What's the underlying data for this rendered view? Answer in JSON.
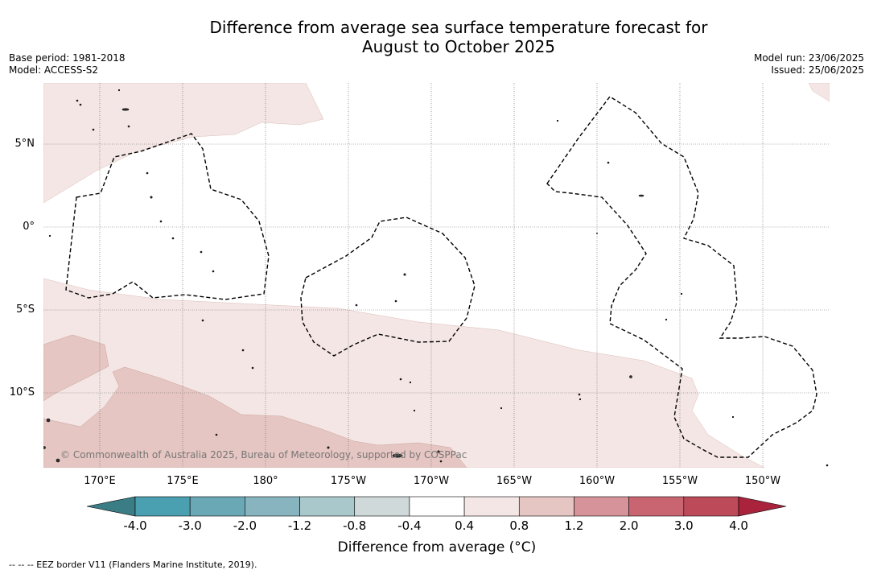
{
  "title": {
    "line1": "Difference from average sea surface temperature forecast for",
    "line2": "August to October 2025"
  },
  "meta_left": {
    "base_period": "Base period: 1981-2018",
    "model": "Model: ACCESS-S2"
  },
  "meta_right": {
    "model_run": "Model run: 23/06/2025",
    "issued": "Issued: 25/06/2025"
  },
  "map": {
    "lat_labels": [
      "5°N",
      "0°",
      "5°S",
      "10°S"
    ],
    "lon_labels": [
      "170°E",
      "175°E",
      "180°",
      "175°W",
      "170°W",
      "165°W",
      "160°W",
      "155°W",
      "150°W"
    ],
    "copyright": "© Commonwealth of Australia 2025, Bureau of Meteorology, supported by COSPPac",
    "colors": {
      "anomaly_0_4_to_0_8": "#f4e6e4",
      "anomaly_0_8_to_1_2": "#e6c6c2",
      "neutral": "#ffffff",
      "eez_border": "#000000"
    }
  },
  "colorbar": {
    "ticks": [
      "-4.0",
      "-3.0",
      "-2.0",
      "-1.2",
      "-0.8",
      "-0.4",
      "0.4",
      "0.8",
      "1.2",
      "2.0",
      "3.0",
      "4.0"
    ],
    "colors": [
      "#3a7d84",
      "#4a9fb0",
      "#6aa8b6",
      "#88b4bf",
      "#a9c8cb",
      "#cfd9d9",
      "#ffffff",
      "#f4e6e4",
      "#e6c6c2",
      "#d6949a",
      "#c86570",
      "#bd4a59",
      "#a8233b"
    ],
    "label": "Difference from average (°C)"
  },
  "footnote": "-- -- -- EEZ border V11 (Flanders Marine Institute, 2019)."
}
